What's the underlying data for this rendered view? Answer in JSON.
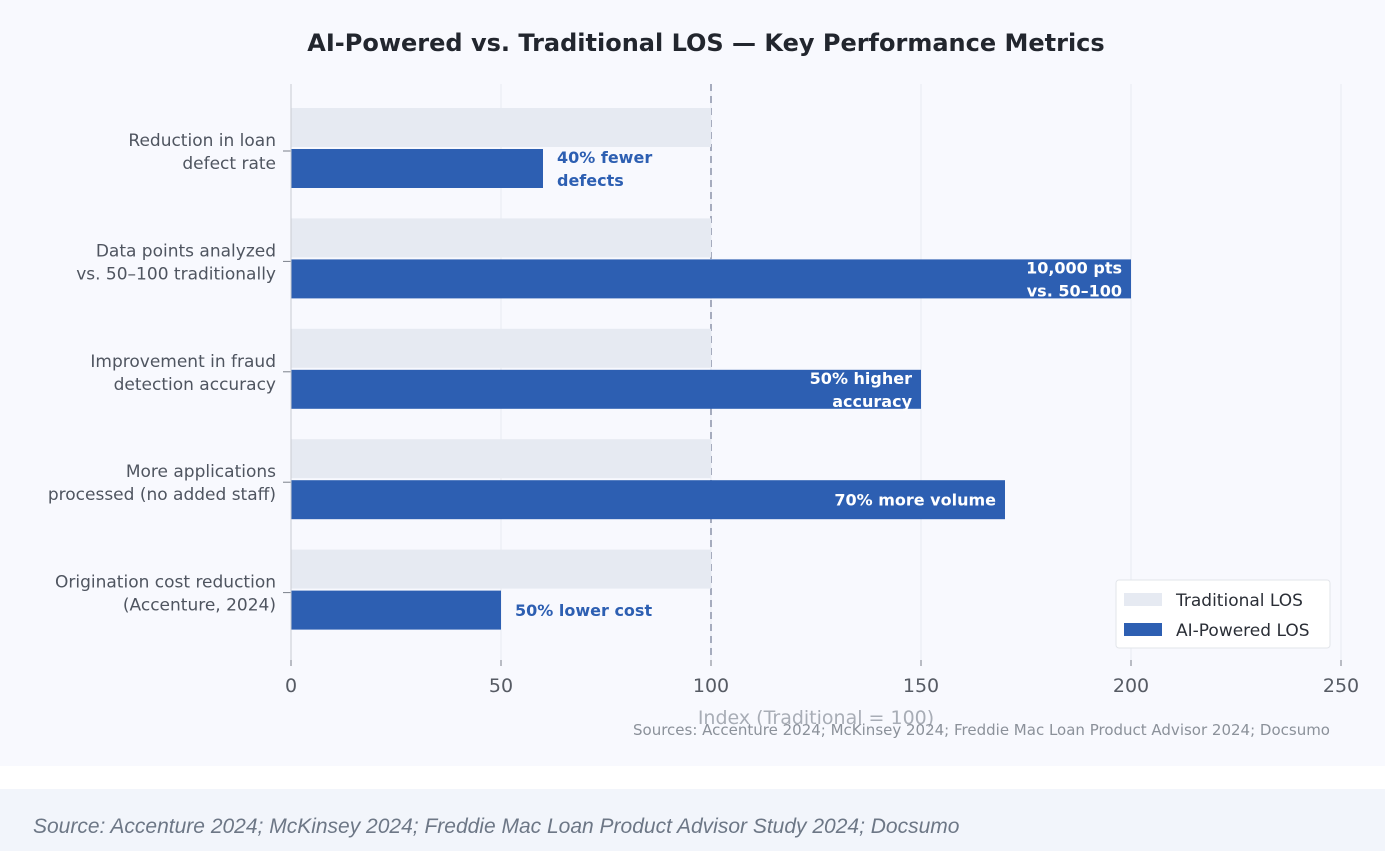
{
  "chart_data": {
    "type": "bar",
    "orientation": "horizontal",
    "title": "AI-Powered vs. Traditional LOS — Key Performance Metrics",
    "xlabel": "Index (Traditional = 100)",
    "xlim": [
      0,
      250
    ],
    "xticks": [
      0,
      50,
      100,
      150,
      200,
      250
    ],
    "reference_line": 100,
    "grid": "vertical",
    "categories": [
      [
        "Reduction in loan",
        "defect rate"
      ],
      [
        "Data points analyzed",
        "vs. 50–100 traditionally"
      ],
      [
        "Improvement in fraud",
        "detection accuracy"
      ],
      [
        "More applications",
        "processed (no added staff)"
      ],
      [
        "Origination cost reduction",
        "(Accenture, 2024)"
      ]
    ],
    "series": [
      {
        "name": "Traditional LOS",
        "color": "#e6eaf2",
        "values": [
          100,
          100,
          100,
          100,
          100
        ]
      },
      {
        "name": "AI-Powered LOS",
        "color": "#2d5fb2",
        "values": [
          60,
          200,
          150,
          170,
          50
        ]
      }
    ],
    "data_labels": [
      {
        "lines": [
          "40% fewer",
          "defects"
        ],
        "placement": "outside"
      },
      {
        "lines": [
          "10,000 pts",
          "vs. 50–100"
        ],
        "placement": "inside"
      },
      {
        "lines": [
          "50% higher",
          "accuracy"
        ],
        "placement": "inside"
      },
      {
        "lines": [
          "70% more volume"
        ],
        "placement": "inside"
      },
      {
        "lines": [
          "50% lower cost"
        ],
        "placement": "outside"
      }
    ],
    "legend": "bottom-right",
    "sources_note": "Sources: Accenture 2024; McKinsey 2024; Freddie Mac Loan Product Advisor 2024; Docsumo"
  },
  "caption": "Source: Accenture 2024; McKinsey 2024; Freddie Mac Loan Product Advisor Study 2024; Docsumo"
}
